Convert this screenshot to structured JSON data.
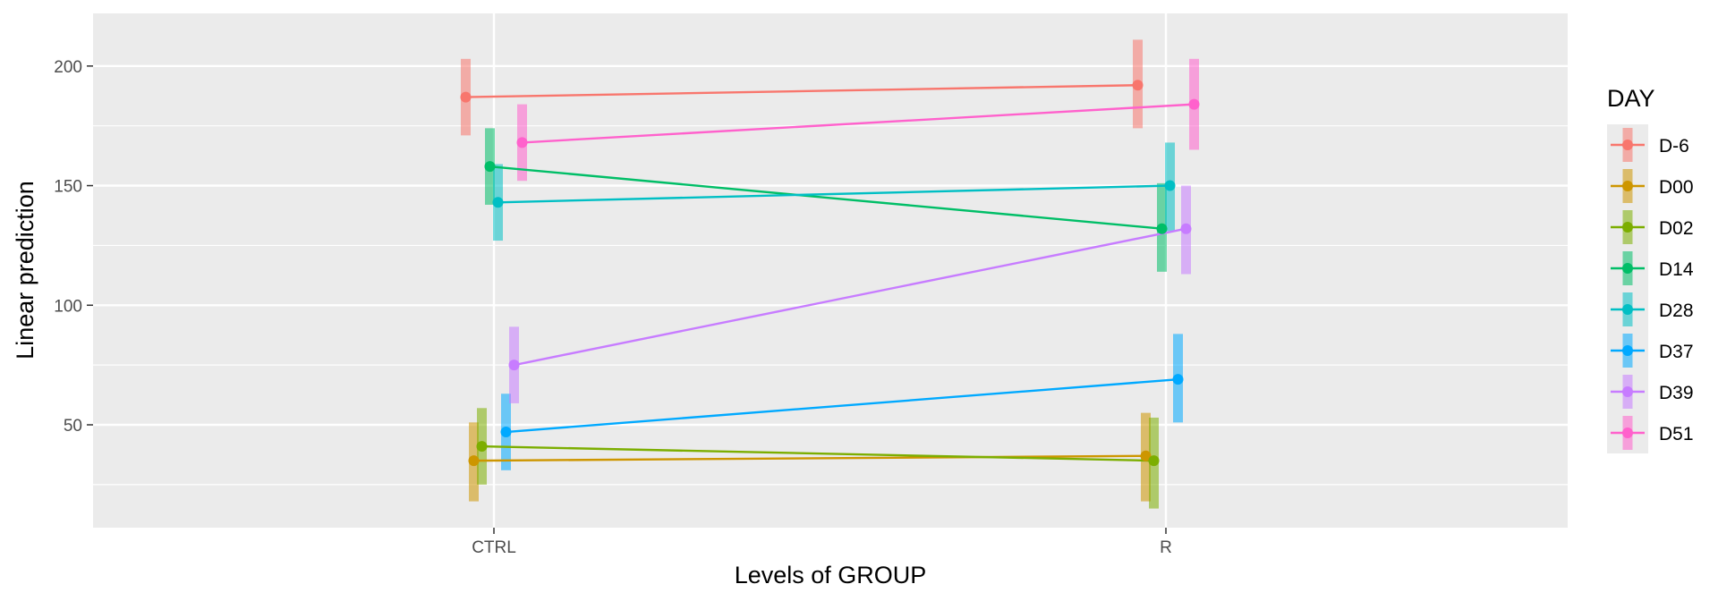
{
  "chart_data": {
    "type": "line",
    "title": "",
    "xlabel": "Levels of GROUP",
    "ylabel": "Linear prediction",
    "categories": [
      "CTRL",
      "R"
    ],
    "ylim": [
      7,
      222
    ],
    "yticks": [
      50,
      100,
      150,
      200
    ],
    "grid": true,
    "legend": {
      "title": "DAY",
      "position": "right"
    },
    "series": [
      {
        "name": "D-6",
        "color": "#F8766D",
        "values": [
          187,
          192
        ],
        "ci_low": [
          171,
          174
        ],
        "ci_high": [
          203,
          211
        ]
      },
      {
        "name": "D00",
        "color": "#CD9600",
        "values": [
          35,
          37
        ],
        "ci_low": [
          18,
          18
        ],
        "ci_high": [
          51,
          55
        ]
      },
      {
        "name": "D02",
        "color": "#7CAE00",
        "values": [
          41,
          35
        ],
        "ci_low": [
          25,
          15
        ],
        "ci_high": [
          57,
          53
        ]
      },
      {
        "name": "D14",
        "color": "#00BE67",
        "values": [
          158,
          132
        ],
        "ci_low": [
          142,
          114
        ],
        "ci_high": [
          174,
          151
        ]
      },
      {
        "name": "D28",
        "color": "#00BFC4",
        "values": [
          143,
          150
        ],
        "ci_low": [
          127,
          131
        ],
        "ci_high": [
          159,
          168
        ]
      },
      {
        "name": "D37",
        "color": "#00A9FF",
        "values": [
          47,
          69
        ],
        "ci_low": [
          31,
          51
        ],
        "ci_high": [
          63,
          88
        ]
      },
      {
        "name": "D39",
        "color": "#C77CFF",
        "values": [
          75,
          132
        ],
        "ci_low": [
          59,
          113
        ],
        "ci_high": [
          91,
          150
        ]
      },
      {
        "name": "D51",
        "color": "#FF61CC",
        "values": [
          168,
          184
        ],
        "ci_low": [
          152,
          165
        ],
        "ci_high": [
          184,
          203
        ]
      }
    ]
  }
}
